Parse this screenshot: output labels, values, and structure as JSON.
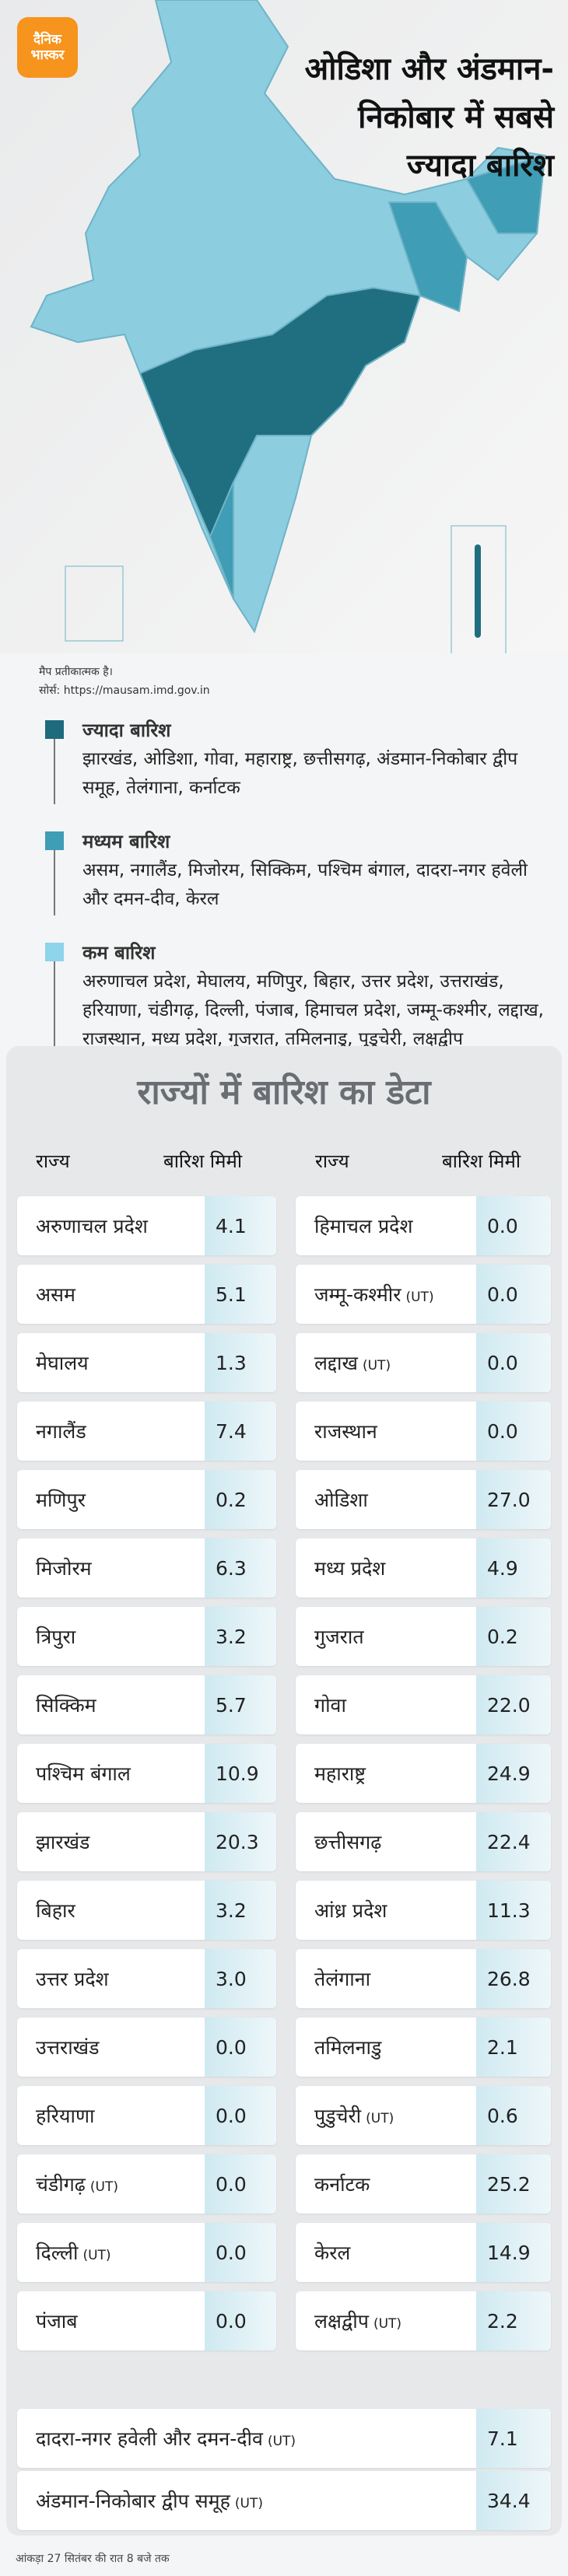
{
  "header": {
    "logo": [
      "दैनिक",
      "भास्कर"
    ],
    "title_lines": [
      "ओडिशा और अंडमान-",
      "निकोबार में सबसे",
      "ज्यादा बारिश"
    ]
  },
  "map": {
    "note": "मैप प्रतीकात्मक है।",
    "source": "सोर्स: https://mausam.imd.gov.in"
  },
  "legend": [
    {
      "title": "ज्यादा बारिश",
      "color": "#1d6b7d",
      "text": "झारखंड, ओडिशा, गोवा, महाराष्ट्र, छत्तीसगढ़, अंडमान-निकोबार द्वीप समूह, तेलंगाना, कर्नाटक"
    },
    {
      "title": "मध्यम बारिश",
      "color": "#3f9db5",
      "text": "असम, नगालैंड, मिजोरम, सिक्किम, पश्चिम बंगाल, दादरा-नगर हवेली और दमन-दीव, केरल"
    },
    {
      "title": "कम बारिश",
      "color": "#8ed4ea",
      "text": "अरुणाचल प्रदेश, मेघालय, मणिपुर, बिहार, उत्तर प्रदेश, उत्तराखंड, हरियाणा, चंडीगढ़, दिल्ली, पंजाब, हिमाचल प्रदेश, जम्मू-कश्मीर, लद्दाख, राजस्थान, मध्य प्रदेश, गुजरात, तमिलनाडु, पुडुचेरी, लक्षद्वीप"
    }
  ],
  "table": {
    "title": "राज्यों में बारिश का डेटा",
    "headers": [
      "राज्य",
      "बारिश मिमी",
      "राज्य",
      "बारिश मिमी"
    ],
    "rows": [
      [
        {
          "state": "अरुणाचल प्रदेश",
          "value": "4.1"
        },
        {
          "state": "हिमाचल प्रदेश",
          "value": "0.0"
        }
      ],
      [
        {
          "state": "असम",
          "value": "5.1"
        },
        {
          "state": "जम्मू-कश्मीर",
          "tag": "(UT)",
          "value": "0.0"
        }
      ],
      [
        {
          "state": "मेघालय",
          "value": "1.3"
        },
        {
          "state": "लद्दाख",
          "tag": "(UT)",
          "value": "0.0"
        }
      ],
      [
        {
          "state": "नगालैंड",
          "value": "7.4"
        },
        {
          "state": "राजस्थान",
          "value": "0.0"
        }
      ],
      [
        {
          "state": "मणिपुर",
          "value": "0.2"
        },
        {
          "state": "ओडिशा",
          "value": "27.0"
        }
      ],
      [
        {
          "state": "मिजोरम",
          "value": "6.3"
        },
        {
          "state": "मध्य प्रदेश",
          "value": "4.9"
        }
      ],
      [
        {
          "state": "त्रिपुरा",
          "value": "3.2"
        },
        {
          "state": "गुजरात",
          "value": "0.2"
        }
      ],
      [
        {
          "state": "सिक्किम",
          "value": "5.7"
        },
        {
          "state": "गोवा",
          "value": "22.0"
        }
      ],
      [
        {
          "state": "पश्चिम बंगाल",
          "value": "10.9"
        },
        {
          "state": "महाराष्ट्र",
          "value": "24.9"
        }
      ],
      [
        {
          "state": "झारखंड",
          "value": "20.3"
        },
        {
          "state": "छत्तीसगढ़",
          "value": "22.4"
        }
      ],
      [
        {
          "state": "बिहार",
          "value": "3.2"
        },
        {
          "state": "आंध्र प्रदेश",
          "value": "11.3"
        }
      ],
      [
        {
          "state": "उत्तर प्रदेश",
          "value": "3.0"
        },
        {
          "state": "तेलंगाना",
          "value": "26.8"
        }
      ],
      [
        {
          "state": "उत्तराखंड",
          "value": "0.0"
        },
        {
          "state": "तमिलनाडु",
          "value": "2.1"
        }
      ],
      [
        {
          "state": "हरियाणा",
          "value": "0.0"
        },
        {
          "state": "पुडुचेरी",
          "tag": "(UT)",
          "value": "0.6"
        }
      ],
      [
        {
          "state": "चंडीगढ़",
          "tag": "(UT)",
          "value": "0.0"
        },
        {
          "state": "कर्नाटक",
          "value": "25.2"
        }
      ],
      [
        {
          "state": "दिल्ली",
          "tag": "(UT)",
          "value": "0.0"
        },
        {
          "state": "केरल",
          "value": "14.9"
        }
      ],
      [
        {
          "state": "पंजाब",
          "value": "0.0"
        },
        {
          "state": "लक्षद्वीप",
          "tag": "(UT)",
          "value": "2.2"
        }
      ]
    ],
    "wide_rows": [
      {
        "state": "दादरा-नगर हवेली और दमन-दीव",
        "tag": "(UT)",
        "value": "7.1"
      },
      {
        "state": "अंडमान-निकोबार द्वीप समूह",
        "tag": "(UT)",
        "value": "34.4"
      }
    ]
  },
  "footnote": "आंकड़ा 27 सितंबर की रात 8 बजे तक"
}
